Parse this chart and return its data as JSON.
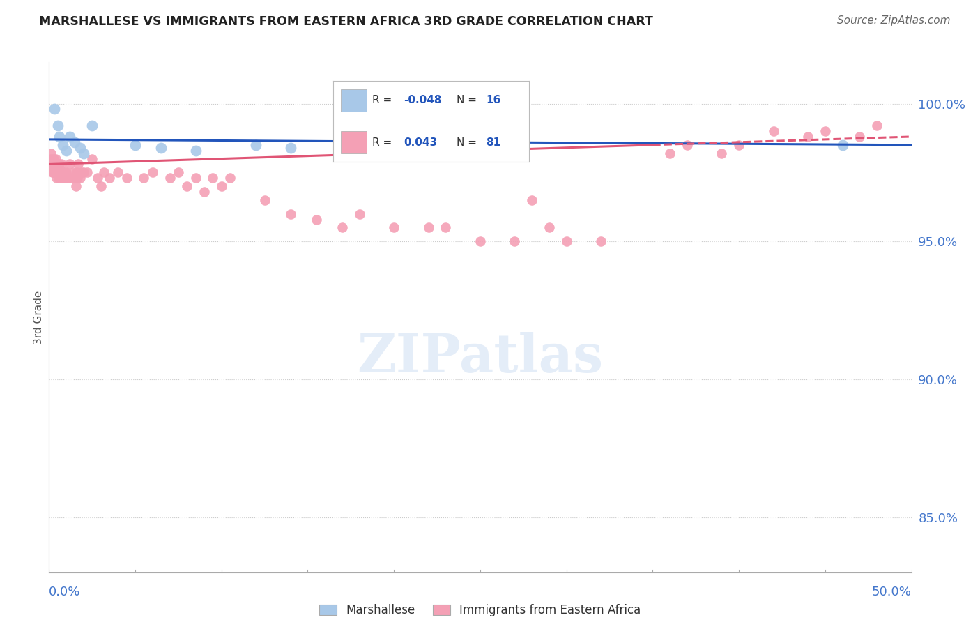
{
  "title": "MARSHALLESE VS IMMIGRANTS FROM EASTERN AFRICA 3RD GRADE CORRELATION CHART",
  "source": "Source: ZipAtlas.com",
  "ylabel": "3rd Grade",
  "xmin": 0.0,
  "xmax": 50.0,
  "ymin": 83.0,
  "ymax": 101.5,
  "yticks": [
    85.0,
    90.0,
    95.0,
    100.0
  ],
  "ytick_labels": [
    "85.0%",
    "90.0%",
    "95.0%",
    "100.0%"
  ],
  "blue_color": "#a8c8e8",
  "pink_color": "#f4a0b5",
  "blue_line_color": "#2255bb",
  "pink_line_color": "#e05575",
  "axis_color": "#4477cc",
  "legend_R_color": "#2255bb",
  "blue_x": [
    0.3,
    0.5,
    0.8,
    1.0,
    1.2,
    1.5,
    1.8,
    2.0,
    2.5,
    5.0,
    6.5,
    8.5,
    12.0,
    14.0,
    46.0,
    0.6
  ],
  "blue_y": [
    99.8,
    99.2,
    98.5,
    98.3,
    98.8,
    98.6,
    98.4,
    98.2,
    99.2,
    98.5,
    98.4,
    98.3,
    98.5,
    98.4,
    98.5,
    98.8
  ],
  "blue_line_x0": 0.0,
  "blue_line_x1": 50.0,
  "blue_line_y0": 98.7,
  "blue_line_y1": 98.5,
  "pink_line_x0": 0.0,
  "pink_line_x1": 50.0,
  "pink_line_y0": 97.8,
  "pink_line_y1": 98.8,
  "pink_dash_start": 35.0,
  "pink_x": [
    0.1,
    0.12,
    0.15,
    0.18,
    0.2,
    0.22,
    0.25,
    0.28,
    0.3,
    0.32,
    0.35,
    0.38,
    0.4,
    0.42,
    0.45,
    0.48,
    0.5,
    0.55,
    0.6,
    0.65,
    0.7,
    0.72,
    0.75,
    0.8,
    0.85,
    0.9,
    0.95,
    1.0,
    1.1,
    1.2,
    1.3,
    1.4,
    1.5,
    1.6,
    1.7,
    1.8,
    1.9,
    2.0,
    2.2,
    2.5,
    2.8,
    3.0,
    3.5,
    4.0,
    4.5,
    5.5,
    6.0,
    7.0,
    7.5,
    8.5,
    9.5,
    10.5,
    12.5,
    14.0,
    15.5,
    17.0,
    18.0,
    20.0,
    22.0,
    23.0,
    25.0,
    27.0,
    28.0,
    29.0,
    30.0,
    32.0,
    36.0,
    37.0,
    39.0,
    40.0,
    42.0,
    44.0,
    45.0,
    47.0,
    48.0,
    1.55,
    1.65,
    3.2,
    8.0,
    9.0,
    10.0
  ],
  "pink_y": [
    98.2,
    98.0,
    97.8,
    97.5,
    97.8,
    97.5,
    97.8,
    98.0,
    97.8,
    97.5,
    97.8,
    98.0,
    97.5,
    97.3,
    97.5,
    97.8,
    97.5,
    97.3,
    97.8,
    97.5,
    97.8,
    97.5,
    97.3,
    97.5,
    97.3,
    97.5,
    97.3,
    97.5,
    97.3,
    97.8,
    97.3,
    97.5,
    97.3,
    97.5,
    97.8,
    97.3,
    97.5,
    97.5,
    97.5,
    98.0,
    97.3,
    97.0,
    97.3,
    97.5,
    97.3,
    97.3,
    97.5,
    97.3,
    97.5,
    97.3,
    97.3,
    97.3,
    96.5,
    96.0,
    95.8,
    95.5,
    96.0,
    95.5,
    95.5,
    95.5,
    95.0,
    95.0,
    96.5,
    95.5,
    95.0,
    95.0,
    98.2,
    98.5,
    98.2,
    98.5,
    99.0,
    98.8,
    99.0,
    98.8,
    99.2,
    97.0,
    97.3,
    97.5,
    97.0,
    96.8,
    97.0
  ]
}
